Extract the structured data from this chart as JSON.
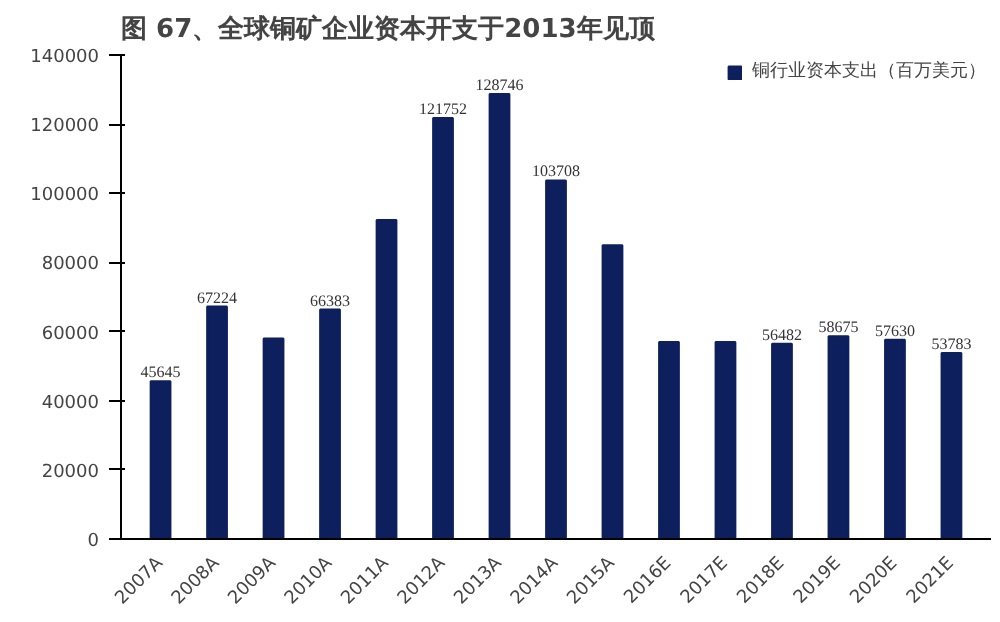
{
  "chart_data": {
    "type": "bar",
    "title": "图 67、全球铜矿企业资本开支于2013年见顶",
    "categories": [
      "2007A",
      "2008A",
      "2009A",
      "2010A",
      "2011A",
      "2012A",
      "2013A",
      "2014A",
      "2015A",
      "2016E",
      "2017E",
      "2018E",
      "2019E",
      "2020E",
      "2021E"
    ],
    "series": [
      {
        "name": "铜行业资本支出（百万美元）",
        "color": "#0d1f5c",
        "values": [
          45645,
          67224,
          58000,
          66383,
          92300,
          121752,
          128746,
          103708,
          85000,
          57000,
          57000,
          56482,
          58675,
          57630,
          53783
        ],
        "value_labels": [
          "45645",
          "67224",
          null,
          "66383",
          null,
          "121752",
          "128746",
          "103708",
          null,
          null,
          null,
          "56482",
          "58675",
          "57630",
          "53783"
        ]
      }
    ],
    "ylim": [
      0,
      140000
    ],
    "yticks": [
      0,
      20000,
      40000,
      60000,
      80000,
      100000,
      120000,
      140000
    ],
    "grid": false,
    "legend": "top"
  }
}
